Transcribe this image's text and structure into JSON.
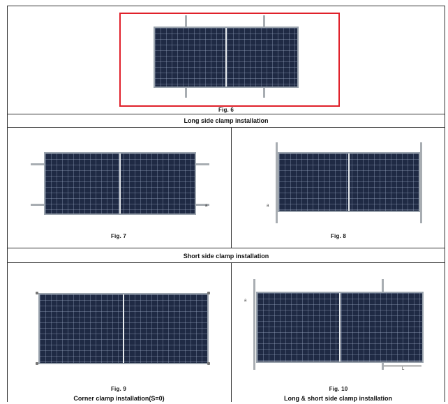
{
  "figures": {
    "fig6": {
      "caption": "Fig. 6"
    },
    "fig7": {
      "caption": "Fig. 7"
    },
    "fig8": {
      "caption": "Fig. 8"
    },
    "fig9": {
      "caption": "Fig. 9"
    },
    "fig10": {
      "caption": "Fig. 10"
    }
  },
  "sections": {
    "long_side": "Long side clamp installation",
    "short_side": "Short side clamp installation",
    "corner": "Corner clamp installation(S=0)",
    "long_short": "Long & short side clamp installation"
  },
  "marks": {
    "a": "a",
    "l": "L"
  },
  "colors": {
    "panel": "#1f2a44",
    "highlight": "#e0202a",
    "rail": "#a8adb2"
  }
}
